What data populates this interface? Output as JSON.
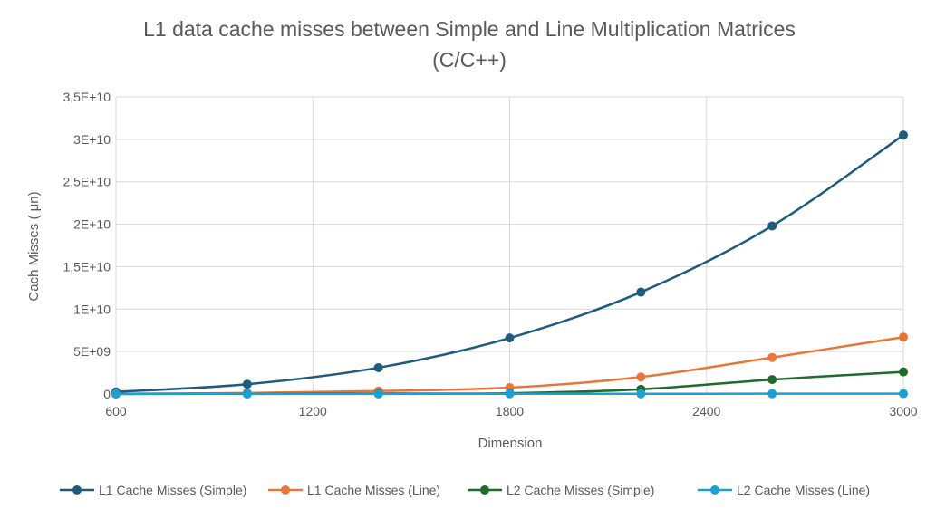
{
  "chart_data": {
    "type": "line",
    "title_lines": [
      "L1 data cache misses between Simple and Line Multiplication Matrices",
      "(C/C++)"
    ],
    "xlabel": "Dimension",
    "ylabel": "Cach Misses ( μn)",
    "x_ticks": [
      "600",
      "1200",
      "1800",
      "2400",
      "3000"
    ],
    "y_ticks": [
      "0",
      "5E+09",
      "1E+10",
      "1,5E+10",
      "2E+10",
      "2,5E+10",
      "3E+10",
      "3,5E+10"
    ],
    "xlim": [
      600,
      3000
    ],
    "ylim": [
      0,
      35000000000
    ],
    "grid": true,
    "legend_position": "bottom",
    "x": [
      600,
      1000,
      1400,
      1800,
      2200,
      2600,
      3000
    ],
    "series": [
      {
        "name": "L1 Cache Misses (Simple)",
        "color": "#1f5b7c",
        "values": [
          250000000,
          1150000000,
          3100000000,
          6600000000,
          12000000000,
          19800000000,
          30500000000
        ]
      },
      {
        "name": "L1 Cache Misses (Line)",
        "color": "#e8763a",
        "values": [
          30000000,
          120000000,
          350000000,
          750000000,
          2000000000,
          4300000000,
          6700000000
        ]
      },
      {
        "name": "L2 Cache Misses (Simple)",
        "color": "#1e6b2c",
        "values": [
          10000000,
          30000000,
          60000000,
          100000000,
          550000000,
          1700000000,
          2600000000
        ]
      },
      {
        "name": "L2 Cache Misses (Line)",
        "color": "#1aa0d4",
        "values": [
          5000000,
          10000000,
          20000000,
          25000000,
          30000000,
          35000000,
          40000000
        ]
      }
    ]
  }
}
